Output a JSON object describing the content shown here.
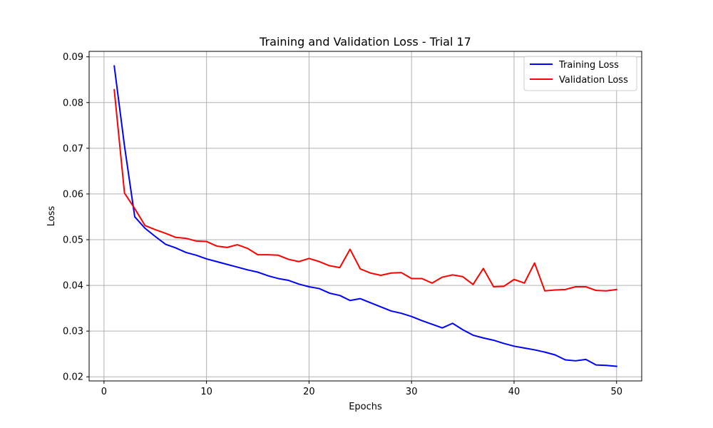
{
  "chart_data": {
    "type": "line",
    "title": "Training and Validation Loss - Trial 17",
    "xlabel": "Epochs",
    "ylabel": "Loss",
    "xlim": [
      -1.45,
      52.45
    ],
    "ylim": [
      0.0191,
      0.0912
    ],
    "xticks": [
      0,
      10,
      20,
      30,
      40,
      50
    ],
    "yticks": [
      0.02,
      0.03,
      0.04,
      0.05,
      0.06,
      0.07,
      0.08,
      0.09
    ],
    "grid": true,
    "legend_position": "top-right",
    "x": [
      1,
      2,
      3,
      4,
      5,
      6,
      7,
      8,
      9,
      10,
      11,
      12,
      13,
      14,
      15,
      16,
      17,
      18,
      19,
      20,
      21,
      22,
      23,
      24,
      25,
      26,
      27,
      28,
      29,
      30,
      31,
      32,
      33,
      34,
      35,
      36,
      37,
      38,
      39,
      40,
      41,
      42,
      43,
      44,
      45,
      46,
      47,
      48,
      49,
      50
    ],
    "series": [
      {
        "name": "Training Loss",
        "color": "#0000ff",
        "values": [
          0.088,
          0.0705,
          0.055,
          0.0525,
          0.0507,
          0.049,
          0.0482,
          0.0472,
          0.0466,
          0.0458,
          0.0452,
          0.0446,
          0.044,
          0.0434,
          0.0429,
          0.0421,
          0.0415,
          0.0411,
          0.0403,
          0.0397,
          0.0393,
          0.0383,
          0.0378,
          0.0367,
          0.0371,
          0.0362,
          0.0353,
          0.0344,
          0.0339,
          0.0332,
          0.0323,
          0.0315,
          0.0307,
          0.0317,
          0.0303,
          0.0291,
          0.0285,
          0.028,
          0.0273,
          0.0267,
          0.0263,
          0.0259,
          0.0254,
          0.0248,
          0.0237,
          0.0235,
          0.0238,
          0.0226,
          0.0225,
          0.0223
        ]
      },
      {
        "name": "Validation Loss",
        "color": "#ff0000",
        "values": [
          0.0828,
          0.0602,
          0.0568,
          0.0531,
          0.0522,
          0.0514,
          0.0505,
          0.0503,
          0.0497,
          0.0496,
          0.0486,
          0.0483,
          0.0489,
          0.0481,
          0.0467,
          0.0467,
          0.0466,
          0.0457,
          0.0452,
          0.0459,
          0.0452,
          0.0443,
          0.0439,
          0.0479,
          0.0436,
          0.0427,
          0.0422,
          0.0427,
          0.0428,
          0.0415,
          0.0415,
          0.0405,
          0.0418,
          0.0423,
          0.0419,
          0.0402,
          0.0437,
          0.0397,
          0.0398,
          0.0413,
          0.0405,
          0.0449,
          0.0388,
          0.039,
          0.0391,
          0.0397,
          0.0397,
          0.0389,
          0.0388,
          0.0391
        ]
      }
    ]
  }
}
